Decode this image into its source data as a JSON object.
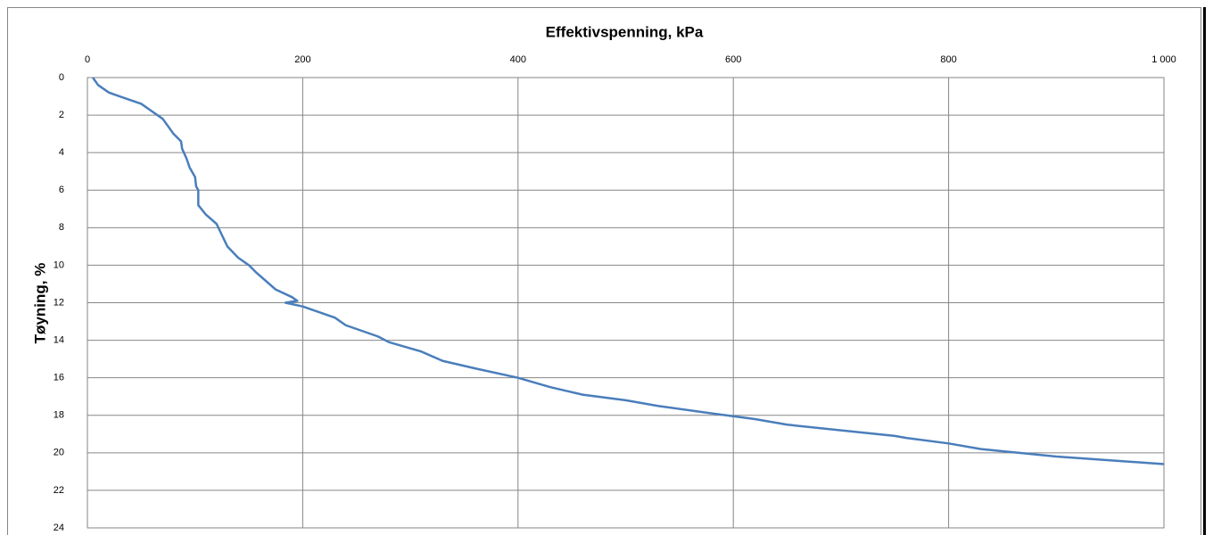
{
  "chart_data": {
    "type": "line",
    "title": "Effektivspenning, kPa",
    "y_label": "Tøyning, %",
    "x": [
      5,
      10,
      20,
      35,
      50,
      60,
      70,
      75,
      80,
      87,
      88,
      92,
      95,
      100,
      101,
      103,
      103,
      110,
      120,
      125,
      130,
      140,
      150,
      157,
      165,
      175,
      190,
      195,
      184,
      200,
      230,
      240,
      270,
      280,
      310,
      330,
      360,
      400,
      430,
      460,
      500,
      530,
      580,
      620,
      650,
      700,
      750,
      760,
      800,
      830,
      900,
      1000
    ],
    "values": [
      0,
      0.4,
      0.8,
      1.1,
      1.4,
      1.8,
      2.2,
      2.6,
      3.0,
      3.4,
      3.8,
      4.3,
      4.8,
      5.3,
      5.8,
      6.0,
      6.8,
      7.3,
      7.8,
      8.4,
      9.0,
      9.6,
      10.0,
      10.4,
      10.8,
      11.3,
      11.7,
      11.9,
      12.0,
      12.2,
      12.8,
      13.2,
      13.8,
      14.1,
      14.6,
      15.1,
      15.5,
      16.0,
      16.5,
      16.9,
      17.2,
      17.5,
      17.9,
      18.2,
      18.5,
      18.8,
      19.1,
      19.2,
      19.5,
      19.8,
      20.2,
      20.6
    ],
    "color": "#4a7ebb",
    "xlim": [
      0,
      1000
    ],
    "xticks": [
      0,
      200,
      400,
      600,
      800,
      {
        "value": 1000,
        "label": "1 000"
      }
    ],
    "ylim": [
      0,
      24
    ],
    "yticks": [
      0,
      2,
      4,
      6,
      8,
      10,
      12,
      14,
      16,
      18,
      20,
      22,
      24
    ],
    "y_inverted": true,
    "x_axis_position": "top",
    "grid": true
  }
}
